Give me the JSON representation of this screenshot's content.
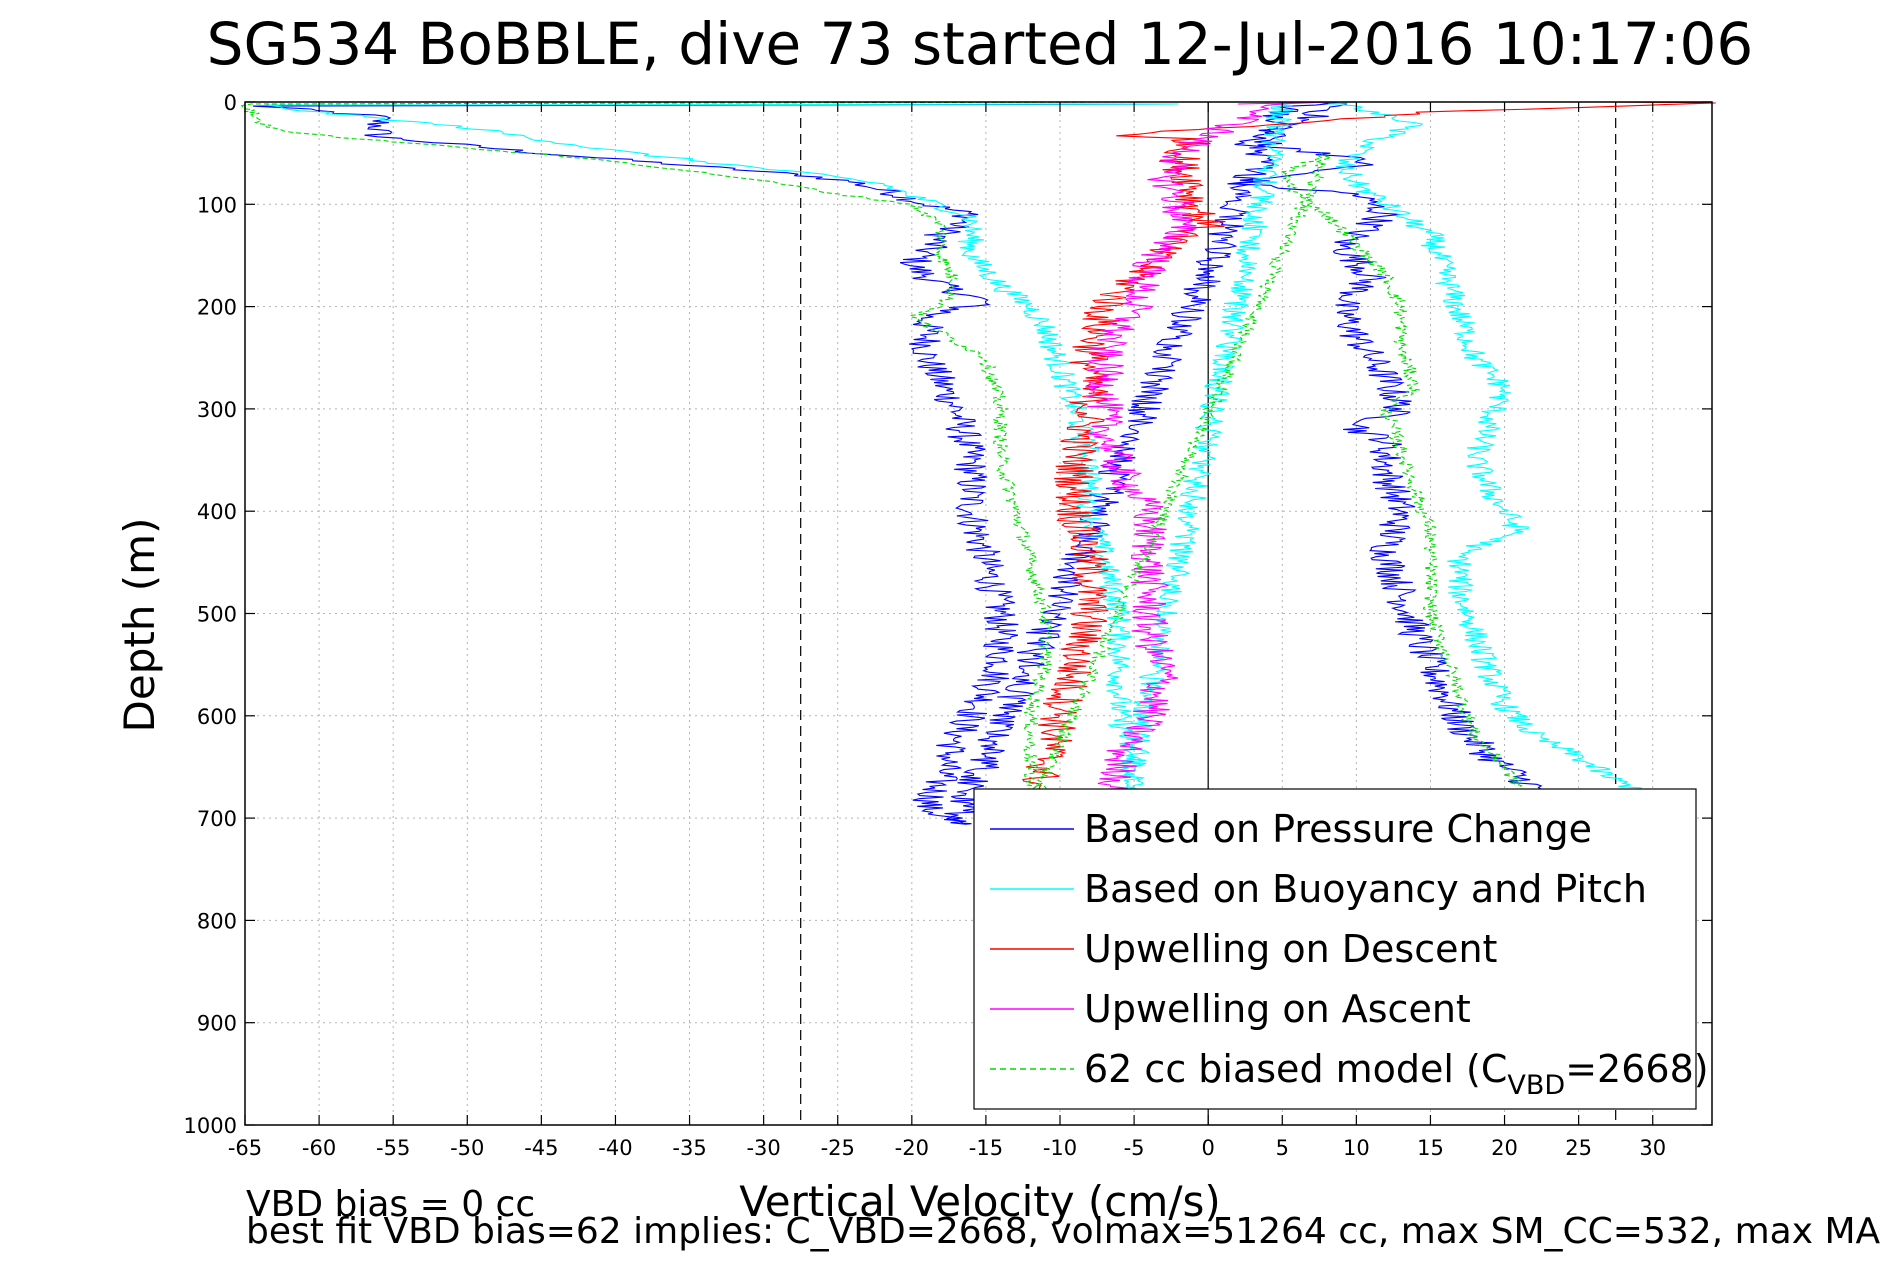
{
  "chart_data": {
    "type": "line",
    "title": "SG534 BoBBLE, dive 73 started 12-Jul-2016 10:17:06",
    "xlabel": "Vertical Velocity (cm/s)",
    "ylabel": "Depth (m)",
    "xlim": [
      -65,
      34
    ],
    "ylim": [
      0,
      1000
    ],
    "y_reversed": true,
    "grid": true,
    "x_ticks": [
      -65,
      -60,
      -55,
      -50,
      -45,
      -40,
      -35,
      -30,
      -25,
      -20,
      -15,
      -10,
      -5,
      0,
      5,
      10,
      15,
      20,
      25,
      30
    ],
    "y_ticks": [
      0,
      100,
      200,
      300,
      400,
      500,
      600,
      700,
      800,
      900,
      1000
    ],
    "reference_lines": {
      "dashed_x": [
        -27.5,
        27.5
      ],
      "solid_x": [
        0
      ]
    },
    "legend_position": "bottom-right",
    "series": [
      {
        "name": "Based on Pressure Change",
        "color": "#0000ff",
        "style": "solid",
        "noise": 1.2,
        "points": [
          [
            -2,
            2
          ],
          [
            -64,
            4
          ],
          [
            -56,
            14
          ],
          [
            -56,
            34
          ],
          [
            -45,
            50
          ],
          [
            -35,
            62
          ],
          [
            -27,
            72
          ],
          [
            -24,
            78
          ],
          [
            -21,
            90
          ],
          [
            -19,
            100
          ],
          [
            -16,
            110
          ],
          [
            -18,
            130
          ],
          [
            -20,
            160
          ],
          [
            -18,
            180
          ],
          [
            -15,
            195
          ],
          [
            -19,
            210
          ],
          [
            -19,
            250
          ],
          [
            -17,
            300
          ],
          [
            -16,
            350
          ],
          [
            -16,
            400
          ],
          [
            -15,
            450
          ],
          [
            -14,
            500
          ],
          [
            -14,
            550
          ],
          [
            -15,
            580
          ],
          [
            -17,
            620
          ],
          [
            -18,
            660
          ],
          [
            -19,
            690
          ],
          [
            -17,
            705
          ],
          [
            -17,
            706
          ],
          [
            5,
            6
          ],
          [
            8,
            0
          ],
          [
            9,
            2
          ],
          [
            6,
            20
          ],
          [
            2,
            40
          ],
          [
            8,
            50
          ],
          [
            11,
            60
          ],
          [
            6,
            70
          ],
          [
            2,
            80
          ],
          [
            10,
            90
          ],
          [
            12,
            110
          ],
          [
            9,
            140
          ],
          [
            11,
            170
          ],
          [
            9,
            200
          ],
          [
            10,
            230
          ],
          [
            12,
            270
          ],
          [
            13,
            300
          ],
          [
            10,
            320
          ],
          [
            12,
            330
          ],
          [
            12,
            360
          ],
          [
            13,
            400
          ],
          [
            12,
            440
          ],
          [
            13,
            480
          ],
          [
            14,
            520
          ],
          [
            15,
            550
          ],
          [
            16,
            580
          ],
          [
            17,
            610
          ],
          [
            19,
            640
          ],
          [
            22,
            670
          ],
          [
            22,
            686
          ]
        ]
      },
      {
        "name": "Based on Buoyancy and Pitch",
        "color": "#00ffff",
        "style": "solid",
        "noise": 0.9,
        "points": [
          [
            -2,
            2
          ],
          [
            -64,
            3
          ],
          [
            -60,
            10
          ],
          [
            -50,
            25
          ],
          [
            -40,
            48
          ],
          [
            -33,
            60
          ],
          [
            -26,
            72
          ],
          [
            -22,
            80
          ],
          [
            -20,
            92
          ],
          [
            -16,
            112
          ],
          [
            -16,
            150
          ],
          [
            -14,
            180
          ],
          [
            -12,
            200
          ],
          [
            -11,
            220
          ],
          [
            -10,
            260
          ],
          [
            -9,
            300
          ],
          [
            -8,
            350
          ],
          [
            -8,
            400
          ],
          [
            -7,
            450
          ],
          [
            -6,
            500
          ],
          [
            -6,
            550
          ],
          [
            -6,
            600
          ],
          [
            -5,
            650
          ],
          [
            -5,
            700
          ],
          [
            -6,
            705
          ],
          [
            5,
            2
          ],
          [
            8,
            0
          ],
          [
            9,
            2
          ],
          [
            11,
            10
          ],
          [
            14,
            20
          ],
          [
            11,
            40
          ],
          [
            9,
            60
          ],
          [
            10,
            80
          ],
          [
            12,
            100
          ],
          [
            15,
            130
          ],
          [
            16,
            170
          ],
          [
            17,
            210
          ],
          [
            18,
            250
          ],
          [
            20,
            280
          ],
          [
            19,
            310
          ],
          [
            18,
            350
          ],
          [
            19,
            380
          ],
          [
            21,
            420
          ],
          [
            17,
            440
          ],
          [
            17,
            480
          ],
          [
            18,
            520
          ],
          [
            19,
            560
          ],
          [
            20,
            590
          ],
          [
            22,
            620
          ],
          [
            25,
            640
          ],
          [
            27,
            660
          ],
          [
            29,
            672
          ],
          [
            28,
            690
          ]
        ]
      },
      {
        "name": "Upwelling on Descent",
        "color": "#ff0000",
        "style": "solid",
        "noise": 1.4,
        "points": [
          [
            27,
            0
          ],
          [
            34,
            1
          ],
          [
            15,
            10
          ],
          [
            8,
            18
          ],
          [
            3,
            24
          ],
          [
            -4,
            30
          ],
          [
            -7,
            33
          ],
          [
            -1,
            36
          ],
          [
            -2,
            60
          ],
          [
            -1,
            80
          ],
          [
            -1,
            100
          ],
          [
            0,
            120
          ],
          [
            -3,
            140
          ],
          [
            -4,
            160
          ],
          [
            -7,
            200
          ],
          [
            -8,
            250
          ],
          [
            -8,
            300
          ],
          [
            -9,
            350
          ],
          [
            -9,
            400
          ],
          [
            -8,
            450
          ],
          [
            -8,
            500
          ],
          [
            -9,
            550
          ],
          [
            -10,
            600
          ],
          [
            -11,
            650
          ],
          [
            -12,
            682
          ]
        ]
      },
      {
        "name": "Upwelling on Ascent",
        "color": "#ff00ff",
        "style": "solid",
        "noise": 1.3,
        "points": [
          [
            2,
            2
          ],
          [
            7,
            0
          ],
          [
            4,
            5
          ],
          [
            2,
            20
          ],
          [
            -1,
            40
          ],
          [
            -3,
            70
          ],
          [
            -2,
            100
          ],
          [
            -2,
            130
          ],
          [
            -4,
            160
          ],
          [
            -5,
            200
          ],
          [
            -7,
            240
          ],
          [
            -7,
            280
          ],
          [
            -7,
            320
          ],
          [
            -6,
            360
          ],
          [
            -4,
            400
          ],
          [
            -4,
            440
          ],
          [
            -4,
            480
          ],
          [
            -4,
            520
          ],
          [
            -3,
            560
          ],
          [
            -4,
            600
          ],
          [
            -6,
            640
          ],
          [
            -6,
            660
          ],
          [
            -7,
            680
          ]
        ]
      },
      {
        "name": "62 cc biased model (C",
        "subscript": "VBD",
        "name_suffix": "=2668)",
        "color": "#00dd00",
        "style": "dashed",
        "noise": 0.5,
        "points": [
          [
            -4,
            0
          ],
          [
            -65,
            2
          ],
          [
            -64,
            20
          ],
          [
            -62,
            30
          ],
          [
            -50,
            45
          ],
          [
            -40,
            58
          ],
          [
            -31,
            75
          ],
          [
            -28,
            82
          ],
          [
            -25,
            90
          ],
          [
            -20,
            100
          ],
          [
            -18,
            120
          ],
          [
            -18,
            150
          ],
          [
            -17,
            180
          ],
          [
            -18,
            200
          ],
          [
            -20,
            210
          ],
          [
            -15,
            250
          ],
          [
            -14,
            300
          ],
          [
            -14,
            350
          ],
          [
            -13,
            400
          ],
          [
            -12,
            450
          ],
          [
            -11,
            500
          ],
          [
            -11,
            550
          ],
          [
            -12,
            600
          ],
          [
            -12,
            650
          ],
          [
            -12,
            690
          ],
          [
            8,
            50
          ],
          [
            5,
            70
          ],
          [
            6,
            90
          ],
          [
            8,
            110
          ],
          [
            10,
            140
          ],
          [
            12,
            170
          ],
          [
            13,
            200
          ],
          [
            13,
            240
          ],
          [
            14,
            280
          ],
          [
            12,
            300
          ],
          [
            13,
            340
          ],
          [
            14,
            380
          ],
          [
            15,
            420
          ],
          [
            15,
            460
          ],
          [
            15,
            500
          ],
          [
            16,
            540
          ],
          [
            17,
            580
          ],
          [
            18,
            620
          ],
          [
            20,
            650
          ],
          [
            21,
            670
          ]
        ]
      }
    ]
  },
  "footer": {
    "line1": "VBD bias = 0 cc",
    "line2": "best fit VBD bias=62 implies: C_VBD=2668, volmax=51264 cc, max SM_CC=532, max MA"
  }
}
